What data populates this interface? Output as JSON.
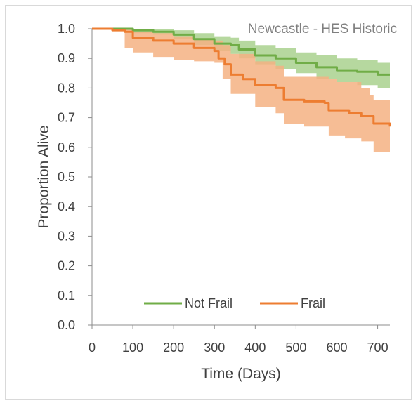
{
  "chart_data": {
    "type": "line",
    "title": "Newcastle - HES Historic",
    "xlabel": "Time (Days)",
    "ylabel": "Proportion Alive",
    "xlim": [
      0,
      730
    ],
    "ylim": [
      0,
      1
    ],
    "x_ticks": [
      "0",
      "100",
      "200",
      "300",
      "400",
      "500",
      "600",
      "700"
    ],
    "y_ticks": [
      "0.0",
      "0.1",
      "0.2",
      "0.3",
      "0.4",
      "0.5",
      "0.6",
      "0.7",
      "0.8",
      "0.9",
      "1.0"
    ],
    "grid": false,
    "legend_position": "bottom",
    "series": [
      {
        "name": "Not Frail",
        "color": "#70ad47",
        "band_color": "#a9d18e",
        "points": [
          [
            0,
            1.0
          ],
          [
            100,
            0.995
          ],
          [
            150,
            0.99
          ],
          [
            200,
            0.98
          ],
          [
            250,
            0.965
          ],
          [
            300,
            0.95
          ],
          [
            340,
            0.945
          ],
          [
            360,
            0.93
          ],
          [
            400,
            0.91
          ],
          [
            450,
            0.9
          ],
          [
            500,
            0.885
          ],
          [
            550,
            0.87
          ],
          [
            600,
            0.86
          ],
          [
            650,
            0.855
          ],
          [
            700,
            0.845
          ],
          [
            730,
            0.845
          ]
        ],
        "upper": [
          [
            0,
            1.0
          ],
          [
            100,
            1.0
          ],
          [
            150,
            1.0
          ],
          [
            200,
            0.995
          ],
          [
            250,
            0.985
          ],
          [
            300,
            0.975
          ],
          [
            340,
            0.97
          ],
          [
            360,
            0.96
          ],
          [
            400,
            0.945
          ],
          [
            450,
            0.935
          ],
          [
            500,
            0.92
          ],
          [
            550,
            0.91
          ],
          [
            600,
            0.9
          ],
          [
            650,
            0.895
          ],
          [
            700,
            0.885
          ],
          [
            730,
            0.885
          ]
        ],
        "lower": [
          [
            0,
            1.0
          ],
          [
            100,
            0.985
          ],
          [
            150,
            0.98
          ],
          [
            200,
            0.965
          ],
          [
            250,
            0.945
          ],
          [
            300,
            0.925
          ],
          [
            340,
            0.915
          ],
          [
            360,
            0.9
          ],
          [
            400,
            0.88
          ],
          [
            450,
            0.865
          ],
          [
            500,
            0.85
          ],
          [
            550,
            0.83
          ],
          [
            600,
            0.82
          ],
          [
            650,
            0.81
          ],
          [
            700,
            0.8
          ],
          [
            730,
            0.8
          ]
        ]
      },
      {
        "name": "Frail",
        "color": "#ed7d31",
        "band_color": "#f4b183",
        "points": [
          [
            0,
            1.0
          ],
          [
            50,
            0.995
          ],
          [
            80,
            0.99
          ],
          [
            100,
            0.97
          ],
          [
            150,
            0.96
          ],
          [
            200,
            0.95
          ],
          [
            250,
            0.935
          ],
          [
            300,
            0.925
          ],
          [
            310,
            0.9
          ],
          [
            325,
            0.88
          ],
          [
            340,
            0.845
          ],
          [
            370,
            0.83
          ],
          [
            400,
            0.81
          ],
          [
            450,
            0.8
          ],
          [
            470,
            0.76
          ],
          [
            520,
            0.755
          ],
          [
            570,
            0.75
          ],
          [
            580,
            0.725
          ],
          [
            630,
            0.715
          ],
          [
            660,
            0.705
          ],
          [
            690,
            0.68
          ],
          [
            730,
            0.67
          ]
        ],
        "upper": [
          [
            0,
            1.0
          ],
          [
            80,
            1.0
          ],
          [
            100,
            0.99
          ],
          [
            150,
            0.985
          ],
          [
            200,
            0.975
          ],
          [
            250,
            0.965
          ],
          [
            300,
            0.96
          ],
          [
            320,
            0.945
          ],
          [
            340,
            0.915
          ],
          [
            400,
            0.89
          ],
          [
            450,
            0.875
          ],
          [
            470,
            0.84
          ],
          [
            580,
            0.83
          ],
          [
            600,
            0.82
          ],
          [
            660,
            0.8
          ],
          [
            680,
            0.775
          ],
          [
            690,
            0.76
          ],
          [
            730,
            0.755
          ]
        ],
        "lower": [
          [
            0,
            1.0
          ],
          [
            79,
            0.995
          ],
          [
            80,
            0.935
          ],
          [
            100,
            0.92
          ],
          [
            150,
            0.905
          ],
          [
            200,
            0.895
          ],
          [
            250,
            0.89
          ],
          [
            300,
            0.885
          ],
          [
            320,
            0.83
          ],
          [
            340,
            0.78
          ],
          [
            400,
            0.735
          ],
          [
            450,
            0.715
          ],
          [
            470,
            0.68
          ],
          [
            520,
            0.67
          ],
          [
            580,
            0.64
          ],
          [
            620,
            0.63
          ],
          [
            660,
            0.62
          ],
          [
            690,
            0.585
          ],
          [
            730,
            0.565
          ]
        ]
      }
    ]
  }
}
